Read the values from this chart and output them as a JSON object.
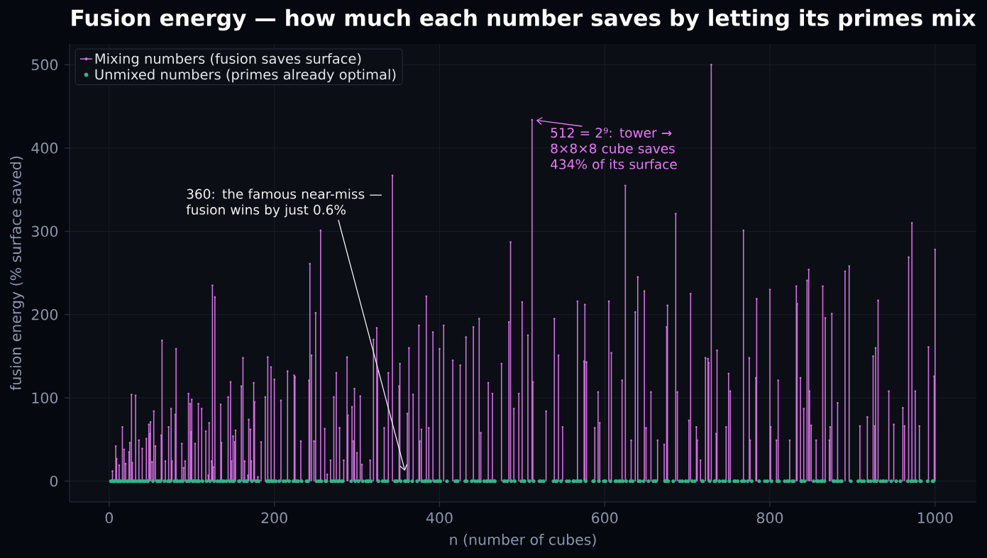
{
  "chart_data": {
    "type": "lollipop",
    "title": "Fusion energy — how much each number saves by letting its primes mix",
    "xlabel": "n (number of cubes)",
    "ylabel": "fusion energy (% surface saved)",
    "xlim": [
      -48,
      1050
    ],
    "ylim": [
      -25,
      525
    ],
    "xticks": [
      0,
      200,
      400,
      600,
      800,
      1000
    ],
    "yticks": [
      0,
      100,
      200,
      300,
      400,
      500
    ],
    "grid": true,
    "legend": "top left",
    "series": [
      {
        "name": "Mixing numbers (fusion saves surface)",
        "color": "#d070e0",
        "marker": "circle",
        "x": [
          4,
          8,
          9,
          12,
          16,
          18,
          20,
          24,
          25,
          27,
          28,
          32,
          36,
          40,
          45,
          48,
          49,
          50,
          52,
          54,
          56,
          63,
          64,
          68,
          72,
          75,
          76,
          80,
          81,
          88,
          90,
          92,
          96,
          98,
          99,
          100,
          104,
          108,
          112,
          117,
          120,
          121,
          124,
          125,
          126,
          128,
          135,
          136,
          144,
          147,
          148,
          150,
          152,
          153,
          160,
          162,
          164,
          168,
          169,
          171,
          172,
          175,
          176,
          180,
          184,
          189,
          192,
          196,
          200,
          208,
          216,
          224,
          225,
          232,
          242,
          243,
          245,
          248,
          250,
          256,
          261,
          264,
          268,
          272,
          275,
          279,
          284,
          288,
          289,
          294,
          296,
          297,
          300,
          304,
          306,
          316,
          320,
          324,
          325,
          333,
          338,
          343,
          351,
          352,
          361,
          363,
          368,
          375,
          376,
          378,
          384,
          387,
          392,
          400,
          405,
          416,
          425,
          432,
          441,
          448,
          450,
          459,
          464,
          475,
          484,
          486,
          490,
          496,
          500,
          507,
          512,
          513,
          529,
          539,
          544,
          549,
          567,
          575,
          576,
          578,
          588,
          592,
          594,
          605,
          608,
          621,
          625,
          632,
          637,
          640,
          648,
          650,
          656,
          664,
          672,
          675,
          676,
          686,
          688,
          702,
          704,
          711,
          712,
          716,
          722,
          725,
          726,
          729,
          735,
          736,
          747,
          750,
          752,
          768,
          775,
          776,
          783,
          784,
          800,
          801,
          808,
          810,
          824,
          832,
          833,
          837,
          841,
          845,
          847,
          848,
          850,
          856,
          864,
          867,
          872,
          873,
          875,
          882,
          891,
          896,
          909,
          918,
          925,
          927,
          928,
          931,
          944,
          950,
          961,
          963,
          968,
          972,
          976,
          981,
          992,
          999,
          1000
        ],
        "values": [
          12,
          42,
          27,
          19,
          65,
          38,
          21,
          35,
          46,
          104,
          22,
          103,
          49,
          39,
          51,
          68,
          57,
          71,
          23,
          84,
          42,
          55,
          169,
          24,
          65,
          87,
          24,
          80,
          159,
          45,
          16,
          24,
          105,
          93,
          59,
          98,
          45,
          93,
          87,
          60,
          7,
          70,
          24,
          235,
          17,
          221,
          92,
          46,
          101,
          119,
          24,
          54,
          47,
          61,
          114,
          148,
          24,
          7,
          74,
          62,
          24,
          118,
          95,
          5,
          47,
          101,
          149,
          137,
          122,
          97,
          132,
          127,
          125,
          48,
          121,
          261,
          151,
          48,
          202,
          301,
          63,
          8,
          25,
          101,
          130,
          64,
          25,
          149,
          79,
          89,
          48,
          111,
          34,
          102,
          20,
          25,
          170,
          184,
          134,
          64,
          130,
          367,
          114,
          141,
          81,
          160,
          104,
          187,
          48,
          62,
          222,
          64,
          179,
          159,
          187,
          145,
          139,
          173,
          185,
          195,
          58,
          118,
          105,
          141,
          191,
          287,
          87,
          105,
          215,
          175,
          434,
          119,
          84,
          195,
          151,
          65,
          216,
          144,
          212,
          143,
          64,
          107,
          70,
          216,
          154,
          121,
          355,
          49,
          203,
          245,
          228,
          64,
          107,
          49,
          44,
          185,
          211,
          321,
          107,
          73,
          225,
          65,
          49,
          25,
          148,
          147,
          142,
          500,
          57,
          157,
          65,
          129,
          108,
          301,
          148,
          49,
          124,
          219,
          230,
          65,
          49,
          121,
          49,
          234,
          213,
          124,
          87,
          241,
          254,
          108,
          67,
          49,
          234,
          196,
          49,
          65,
          201,
          94,
          252,
          258,
          66,
          77,
          150,
          66,
          160,
          217,
          108,
          68,
          88,
          66,
          269,
          310,
          108,
          66,
          161,
          126,
          278
        ]
      },
      {
        "name": "Unmixed numbers (primes already optimal)",
        "type": "scatter",
        "color": "#2fb889",
        "marker": "circle",
        "x": [
          2,
          3,
          5,
          7,
          11,
          13,
          17,
          19,
          23,
          29,
          31,
          37,
          41,
          43,
          47,
          53,
          59,
          61,
          67,
          71,
          73,
          79,
          83,
          89,
          97,
          101,
          103,
          107,
          109,
          113,
          127,
          131,
          137,
          139,
          149,
          151,
          157,
          163,
          167,
          173,
          179,
          181,
          191,
          193,
          197,
          199,
          211,
          223,
          227,
          229,
          233,
          239,
          241,
          251,
          257,
          263,
          269,
          271,
          277,
          281,
          283,
          293,
          307,
          311,
          313,
          317,
          331,
          337,
          347,
          349,
          353,
          359,
          367,
          373,
          379,
          383,
          389,
          397,
          401,
          409,
          419,
          421,
          431,
          433,
          439,
          443,
          449,
          457,
          461,
          463,
          467,
          479,
          487,
          491,
          499,
          503,
          509,
          521,
          523,
          541,
          547,
          557,
          563,
          569,
          571,
          577,
          587,
          593,
          599,
          601,
          607,
          613,
          617,
          619,
          631,
          641,
          643,
          647,
          653,
          659,
          661,
          673,
          677,
          683,
          691,
          701,
          709,
          719,
          727,
          733,
          739,
          743,
          751,
          757,
          761,
          769,
          773,
          787,
          797,
          809,
          811,
          821,
          823,
          827,
          829,
          839,
          853,
          857,
          859,
          863,
          877,
          881,
          883,
          887,
          907,
          911,
          919,
          929,
          937,
          941,
          947,
          953,
          967,
          971,
          977,
          983,
          991,
          997,
          6,
          10,
          14,
          22,
          26,
          34,
          38,
          46,
          58,
          62,
          74,
          82,
          86,
          94,
          106,
          118,
          122,
          134,
          142,
          146,
          158,
          166,
          178,
          194,
          202,
          206,
          214,
          218,
          226,
          254,
          262,
          274,
          278,
          298,
          302,
          314,
          326,
          334,
          346,
          358,
          362,
          382,
          386,
          394,
          398,
          422,
          446,
          454,
          458,
          466,
          478,
          482,
          502,
          514,
          526,
          538,
          542,
          554,
          562,
          566,
          586,
          614,
          622,
          626,
          634,
          662,
          674,
          694,
          698,
          706,
          718,
          734,
          746,
          758,
          766,
          778,
          794,
          802,
          818,
          838,
          842,
          862,
          866,
          878,
          886,
          898,
          914,
          922,
          926,
          934,
          938,
          958,
          974,
          982,
          998
        ],
        "values": [
          0,
          0,
          0,
          0,
          0,
          0,
          0,
          0,
          0,
          0,
          0,
          0,
          0,
          0,
          0,
          0,
          0,
          0,
          0,
          0,
          0,
          0,
          0,
          0,
          0,
          0,
          0,
          0,
          0,
          0,
          0,
          0,
          0,
          0,
          0,
          0,
          0,
          0,
          0,
          0,
          0,
          0,
          0,
          0,
          0,
          0,
          0,
          0,
          0,
          0,
          0,
          0,
          0,
          0,
          0,
          0,
          0,
          0,
          0,
          0,
          0,
          0,
          0,
          0,
          0,
          0,
          0,
          0,
          0,
          0,
          0,
          0,
          0,
          0,
          0,
          0,
          0,
          0,
          0,
          0,
          0,
          0,
          0,
          0,
          0,
          0,
          0,
          0,
          0,
          0,
          0,
          0,
          0,
          0,
          0,
          0,
          0,
          0,
          0,
          0,
          0,
          0,
          0,
          0,
          0,
          0,
          0,
          0,
          0,
          0,
          0,
          0,
          0,
          0,
          0,
          0,
          0,
          0,
          0,
          0,
          0,
          0,
          0,
          0,
          0,
          0,
          0,
          0,
          0,
          0,
          0,
          0,
          0,
          0,
          0,
          0,
          0,
          0,
          0,
          0,
          0,
          0,
          0,
          0,
          0,
          0,
          0,
          0,
          0,
          0,
          0,
          0,
          0,
          0,
          0,
          0,
          0,
          0,
          0,
          0,
          0,
          0,
          0,
          0,
          0,
          0,
          0,
          0,
          0,
          0,
          0,
          0,
          0,
          0,
          0,
          0,
          0,
          0,
          0,
          0,
          0,
          0,
          0,
          0,
          0,
          0,
          0,
          0,
          0,
          0,
          0,
          0,
          0,
          0,
          0,
          0,
          0,
          0,
          0,
          0,
          0,
          0,
          0,
          0,
          0,
          0,
          0,
          0,
          0,
          0,
          0,
          0,
          0,
          0,
          0,
          0,
          0,
          0,
          0,
          0,
          0,
          0,
          0,
          0,
          0,
          0,
          0,
          0,
          0,
          0,
          0,
          0,
          0,
          0,
          0,
          0,
          0,
          0,
          0,
          0,
          0,
          0,
          0,
          0,
          0,
          0,
          0,
          0,
          0,
          0,
          0,
          0,
          0,
          0,
          0,
          0,
          0,
          0,
          0,
          0,
          0,
          0,
          0
        ]
      }
    ],
    "annotations": [
      {
        "text": "512 = 2⁹: tower → 8×8×8 cube saves 434% of its surface",
        "x": 512,
        "y": 434
      },
      "360: the famous near-miss — fusion wins by just 0.6%"
    ]
  }
}
